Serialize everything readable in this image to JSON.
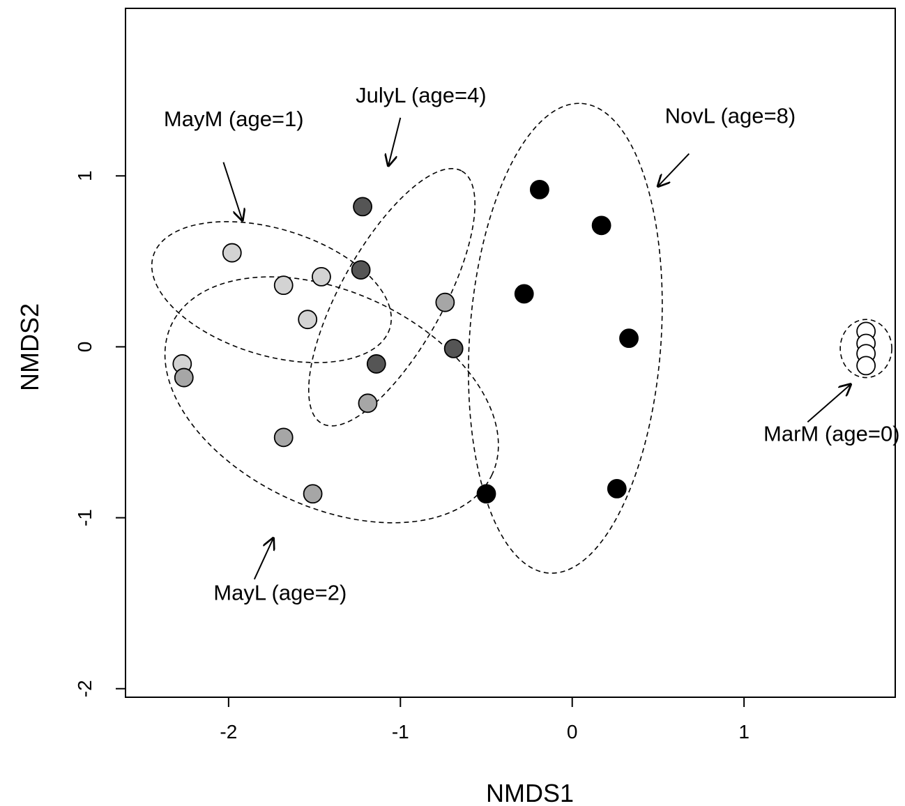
{
  "chart_data": {
    "type": "scatter",
    "title": "",
    "xlabel": "NMDS1",
    "ylabel": "NMDS2",
    "xlim": [
      -2.6,
      1.88
    ],
    "ylim": [
      -2.05,
      1.98
    ],
    "xticks": [
      -2,
      -1,
      0,
      1
    ],
    "yticks": [
      -2,
      -1,
      0,
      1
    ],
    "xtick_labels": [
      "-2",
      "-1",
      "0",
      "1"
    ],
    "ytick_labels": [
      "-2",
      "-1",
      "0",
      "1"
    ],
    "grid": false,
    "legend": "none",
    "series": [
      {
        "color": "#ffffff",
        "points": [
          {
            "x": 1.71,
            "y": 0.09
          },
          {
            "x": 1.71,
            "y": 0.02
          },
          {
            "x": 1.71,
            "y": -0.04
          },
          {
            "x": 1.71,
            "y": -0.11
          }
        ]
      },
      {
        "color": "#d3d3d3",
        "points": [
          {
            "x": -1.98,
            "y": 0.55
          },
          {
            "x": -1.68,
            "y": 0.36
          },
          {
            "x": -1.46,
            "y": 0.41
          },
          {
            "x": -1.54,
            "y": 0.16
          },
          {
            "x": -2.27,
            "y": -0.1
          }
        ]
      },
      {
        "color": "#a6a6a6",
        "points": [
          {
            "x": -0.74,
            "y": 0.26
          },
          {
            "x": -2.26,
            "y": -0.18
          },
          {
            "x": -1.19,
            "y": -0.33
          },
          {
            "x": -1.68,
            "y": -0.53
          },
          {
            "x": -1.51,
            "y": -0.86
          }
        ]
      },
      {
        "color": "#555555",
        "points": [
          {
            "x": -1.22,
            "y": 0.82
          },
          {
            "x": -1.23,
            "y": 0.45
          },
          {
            "x": -0.69,
            "y": -0.01
          },
          {
            "x": -1.14,
            "y": -0.1
          }
        ]
      },
      {
        "color": "#000000",
        "points": [
          {
            "x": -0.19,
            "y": 0.92
          },
          {
            "x": 0.17,
            "y": 0.71
          },
          {
            "x": -0.28,
            "y": 0.31
          },
          {
            "x": 0.33,
            "y": 0.05
          },
          {
            "x": -0.5,
            "y": -0.86
          },
          {
            "x": 0.26,
            "y": -0.83
          }
        ]
      }
    ],
    "ellipses": [
      {
        "cx": -1.75,
        "cy": 0.32,
        "rx": 0.72,
        "ry": 0.37,
        "angle": 17
      },
      {
        "cx": -1.05,
        "cy": 0.29,
        "rx": 0.84,
        "ry": 0.3,
        "angle": -61
      },
      {
        "cx": -1.4,
        "cy": -0.31,
        "rx": 1.03,
        "ry": 0.63,
        "angle": 25
      },
      {
        "cx": -0.04,
        "cy": 0.05,
        "rx": 1.37,
        "ry": 0.56,
        "angle": -86
      },
      {
        "cx": 1.71,
        "cy": -0.01,
        "rx": 0.15,
        "ry": 0.17,
        "angle": 0
      }
    ],
    "annotations": [
      {
        "text": "MayM (age=1)",
        "x": -1.97,
        "y": 1.29,
        "arrow_from": [
          -2.03,
          1.08
        ],
        "arrow_to": [
          -1.92,
          0.74
        ]
      },
      {
        "text": "JulyL (age=4)",
        "x": -0.88,
        "y": 1.43,
        "arrow_from": [
          -1.0,
          1.34
        ],
        "arrow_to": [
          -1.07,
          1.06
        ]
      },
      {
        "text": "NovL (age=8)",
        "x": 0.92,
        "y": 1.31,
        "arrow_from": [
          0.68,
          1.13
        ],
        "arrow_to": [
          0.5,
          0.94
        ]
      },
      {
        "text": "MarM (age=0)",
        "x": 1.51,
        "y": -0.55,
        "arrow_from": [
          1.37,
          -0.44
        ],
        "arrow_to": [
          1.62,
          -0.22
        ]
      },
      {
        "text": "MayL (age=2)",
        "x": -1.7,
        "y": -1.48,
        "arrow_from": [
          -1.85,
          -1.36
        ],
        "arrow_to": [
          -1.74,
          -1.12
        ]
      }
    ]
  }
}
